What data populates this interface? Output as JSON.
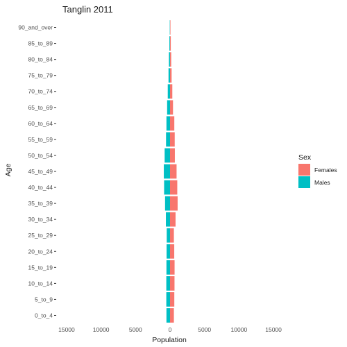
{
  "chart_data": {
    "type": "bar",
    "orientation": "horizontal",
    "layout": "population-pyramid",
    "title": "Tanglin  2011",
    "xlabel": "Population",
    "ylabel": "Age",
    "xlim": [
      -16000,
      16000
    ],
    "x_ticks": [
      -15000,
      -10000,
      -5000,
      0,
      5000,
      10000,
      15000
    ],
    "x_tick_labels": [
      "15000",
      "10000",
      "5000",
      "0",
      "5000",
      "10000",
      "15000"
    ],
    "grid": false,
    "legend": {
      "title": "Sex",
      "position": "right"
    },
    "categories": [
      "0_to_4",
      "5_to_9",
      "10_to_14",
      "15_to_19",
      "20_to_24",
      "25_to_29",
      "30_to_34",
      "35_to_39",
      "40_to_44",
      "45_to_49",
      "50_to_54",
      "55_to_59",
      "60_to_64",
      "65_to_69",
      "70_to_74",
      "75_to_79",
      "80_to_84",
      "85_to_89",
      "90_and_over"
    ],
    "series": [
      {
        "name": "Females",
        "color": "#F8766D",
        "values": [
          560,
          620,
          650,
          660,
          610,
          560,
          800,
          1100,
          1050,
          950,
          700,
          680,
          620,
          430,
          330,
          230,
          170,
          110,
          60
        ]
      },
      {
        "name": "Males",
        "color": "#00BFC4",
        "values": [
          -520,
          -540,
          -540,
          -520,
          -500,
          -480,
          -600,
          -720,
          -860,
          -900,
          -780,
          -580,
          -520,
          -420,
          -330,
          -220,
          -160,
          -90,
          -40
        ]
      }
    ]
  }
}
